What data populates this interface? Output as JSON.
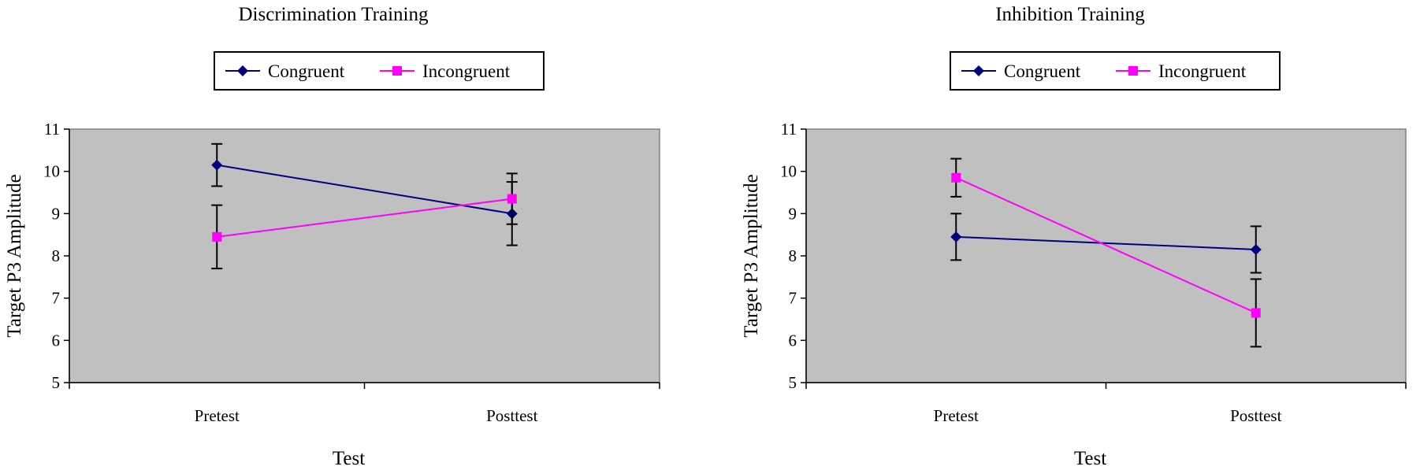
{
  "chart_data": [
    {
      "type": "line",
      "title": "Discrimination Training",
      "xlabel": "Test",
      "ylabel": "Target P3 Amplitude",
      "categories": [
        "Pretest",
        "Posttest"
      ],
      "ylim": [
        5,
        11
      ],
      "yticks": [
        5,
        6,
        7,
        8,
        9,
        10,
        11
      ],
      "grid": false,
      "legend_position": "top",
      "plot_background": "#c0c0c0",
      "series": [
        {
          "name": "Congruent",
          "color": "#000080",
          "marker": "diamond",
          "values": [
            10.15,
            9.0
          ],
          "error": [
            0.5,
            0.75
          ]
        },
        {
          "name": "Incongruent",
          "color": "#ff00ff",
          "marker": "square",
          "values": [
            8.45,
            9.35
          ],
          "error": [
            0.75,
            0.6
          ]
        }
      ]
    },
    {
      "type": "line",
      "title": "Inhibition Training",
      "xlabel": "Test",
      "ylabel": "Target P3 Amplitude",
      "categories": [
        "Pretest",
        "Posttest"
      ],
      "ylim": [
        5,
        11
      ],
      "yticks": [
        5,
        6,
        7,
        8,
        9,
        10,
        11
      ],
      "grid": false,
      "legend_position": "top",
      "plot_background": "#c0c0c0",
      "series": [
        {
          "name": "Congruent",
          "color": "#000080",
          "marker": "diamond",
          "values": [
            8.45,
            8.15
          ],
          "error": [
            0.55,
            0.55
          ]
        },
        {
          "name": "Incongruent",
          "color": "#ff00ff",
          "marker": "square",
          "values": [
            9.85,
            6.65
          ],
          "error": [
            0.45,
            0.8
          ]
        }
      ]
    }
  ]
}
